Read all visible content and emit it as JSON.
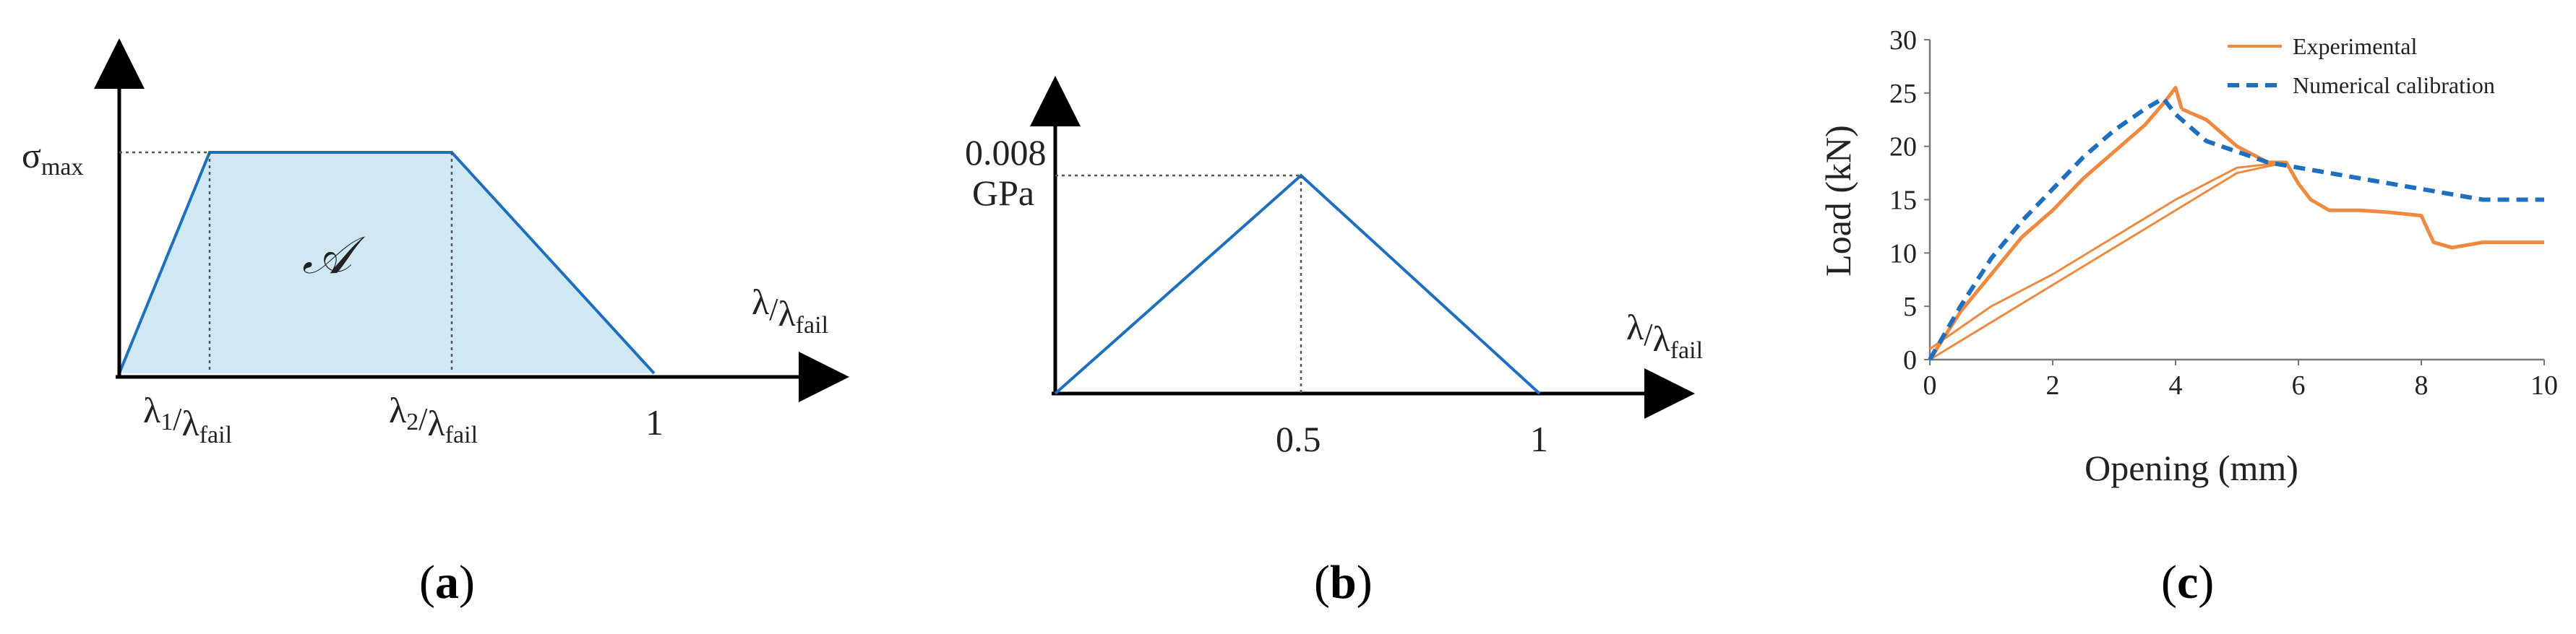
{
  "colors": {
    "axis": "#000000",
    "blue": "#1f6fbf",
    "fill": "#cfe8f3",
    "orange": "#ee8a3f",
    "dashed": "#1f6fbf",
    "dotted": "#555555"
  },
  "panels": {
    "a": {
      "label_open": "(",
      "label_letter": "a",
      "label_close": ")",
      "y_symbol": "σ",
      "y_sub": "max",
      "area_symbol": "𝒜",
      "x_symbol": "λ",
      "x_sub": "fail",
      "x1_symbol": "λ",
      "x1_sub": "1",
      "x2_symbol": "λ",
      "x2_sub": "2",
      "tick_one": "1"
    },
    "b": {
      "label_open": "(",
      "label_letter": "b",
      "label_close": ")",
      "peak_value": "0.008",
      "peak_unit": "GPa",
      "tick_half": "0.5",
      "tick_one": "1",
      "x_symbol": "λ",
      "x_sub": "fail"
    },
    "c": {
      "label_open": "(",
      "label_letter": "c",
      "label_close": ")"
    }
  },
  "chart_data": [
    {
      "type": "area",
      "title": "",
      "shape": "trapezoidal traction-separation law",
      "x": [
        0,
        0.14,
        0.52,
        1.0
      ],
      "y": [
        0,
        1,
        1,
        0
      ],
      "x_ticks": [
        "λ1/λfail",
        "λ2/λfail",
        "1"
      ],
      "ylabel": "σmax",
      "xlabel": "λ/λfail",
      "annotation": "𝒜"
    },
    {
      "type": "line",
      "title": "",
      "shape": "triangular traction-separation law",
      "x": [
        0,
        0.5,
        1.0
      ],
      "y": [
        0,
        0.008,
        0
      ],
      "y_tick": "0.008 GPa",
      "x_ticks": [
        "0.5",
        "1"
      ],
      "xlabel": "λ/λfail"
    },
    {
      "type": "line",
      "title": "",
      "xlabel": "Opening (mm)",
      "ylabel": "Load (kN)",
      "xlim": [
        0,
        10
      ],
      "ylim": [
        0,
        30
      ],
      "x_ticks": [
        0,
        2,
        4,
        6,
        8,
        10
      ],
      "y_ticks": [
        0,
        5,
        10,
        15,
        20,
        25,
        30
      ],
      "legend_position": "top-right",
      "series": [
        {
          "name": "Experimental",
          "style": "solid",
          "segments": [
            {
              "x": [
                0,
                0.5,
                1.0,
                1.5,
                2.0,
                2.5,
                3.0,
                3.5,
                3.8,
                4.0,
                4.1
              ],
              "y": [
                0,
                4.5,
                8,
                11.5,
                14,
                17,
                19.5,
                22,
                24,
                25.5,
                23.5
              ]
            },
            {
              "x": [
                4.1,
                4.5,
                5.0,
                5.5,
                5.8,
                6.0,
                6.2,
                6.5,
                7.0,
                7.5,
                8.0,
                8.2,
                8.5,
                9.0,
                9.5,
                10.0
              ],
              "y": [
                23.5,
                22.5,
                20,
                18.5,
                18.5,
                16.5,
                15,
                14,
                14,
                13.8,
                13.5,
                11,
                10.5,
                11,
                11,
                11
              ]
            },
            {
              "x": [
                0,
                1.0,
                2.0,
                3.0,
                4.0,
                5.0,
                5.8
              ],
              "y": [
                0,
                3.5,
                7,
                10.5,
                14,
                17.5,
                18.5
              ]
            },
            {
              "x": [
                0,
                1.0,
                2.0,
                3.0,
                4.0,
                4.5,
                5.0,
                5.8
              ],
              "y": [
                1,
                5,
                8,
                11.5,
                15,
                16.5,
                18,
                18.5
              ]
            }
          ]
        },
        {
          "name": "Numerical calibration",
          "style": "dashed",
          "x": [
            0,
            0.5,
            1.0,
            1.5,
            2.0,
            2.5,
            3.0,
            3.5,
            3.8,
            4.0,
            4.5,
            5.0,
            5.5,
            6.0,
            6.5,
            7.0,
            7.5,
            8.0,
            8.5,
            9.0,
            9.5,
            10.0
          ],
          "y": [
            0,
            5,
            9.5,
            13,
            16,
            19,
            21.5,
            23.5,
            24.5,
            23,
            20.5,
            19.5,
            18.5,
            18,
            17.5,
            17,
            16.5,
            16,
            15.5,
            15,
            15,
            15
          ]
        }
      ]
    }
  ]
}
